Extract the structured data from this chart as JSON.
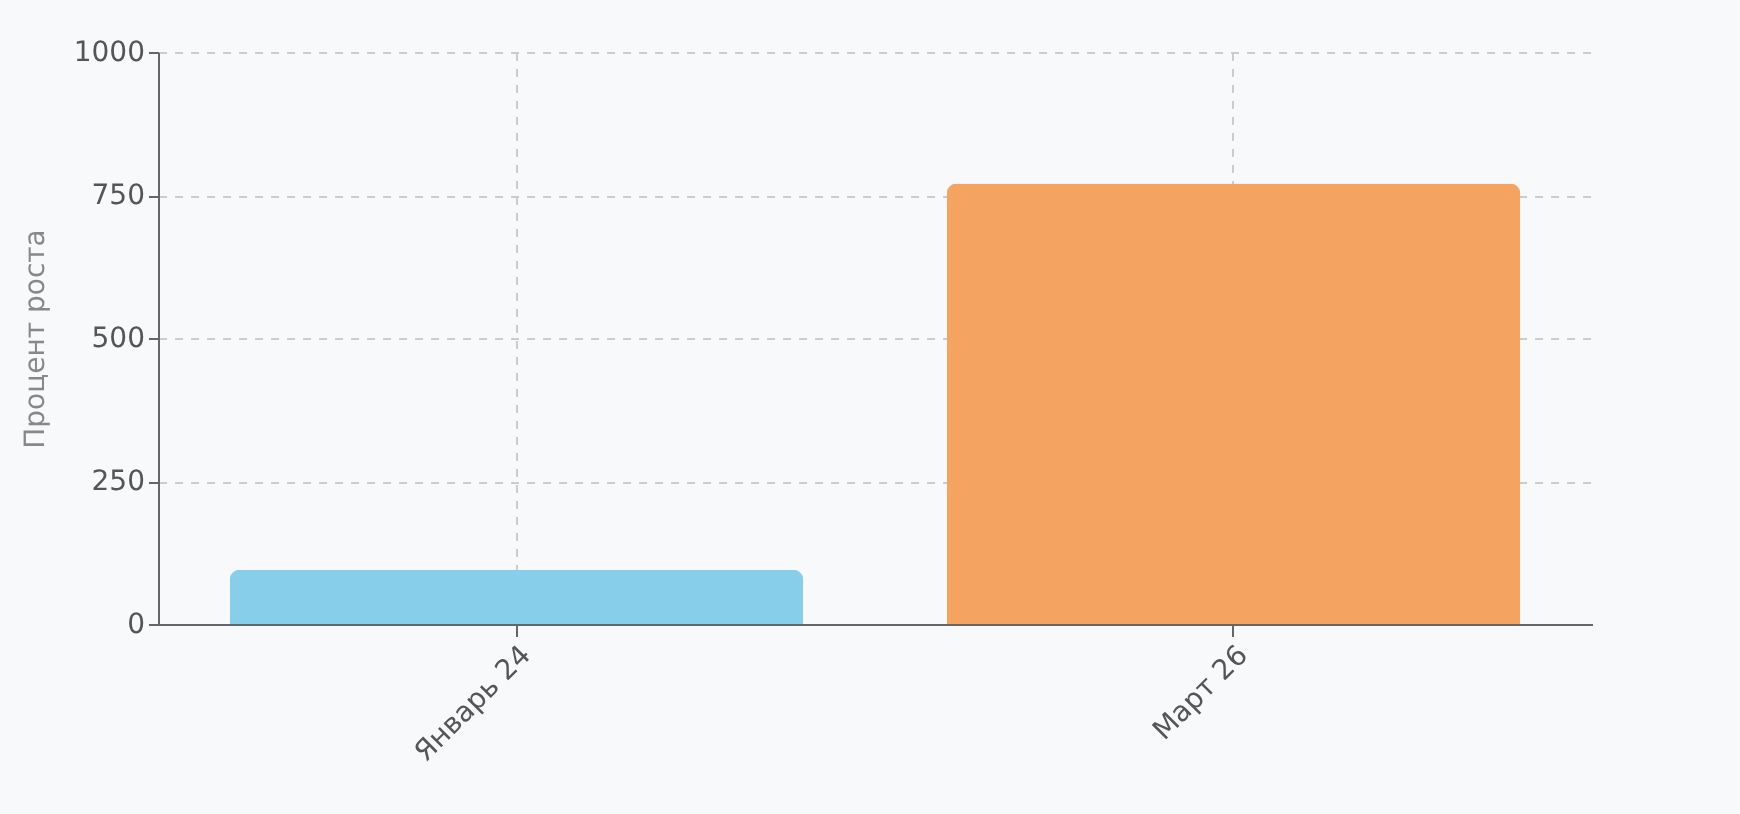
{
  "chart_data": {
    "type": "bar",
    "ylabel": "Процент роста",
    "categories": [
      "Январь 24",
      "Март 26"
    ],
    "values": [
      95,
      770
    ],
    "colors": [
      "#87ceeb",
      "#f4a460"
    ],
    "ylim": [
      0,
      1000
    ],
    "yticks": [
      0,
      250,
      500,
      750,
      1000
    ],
    "grid": true
  }
}
